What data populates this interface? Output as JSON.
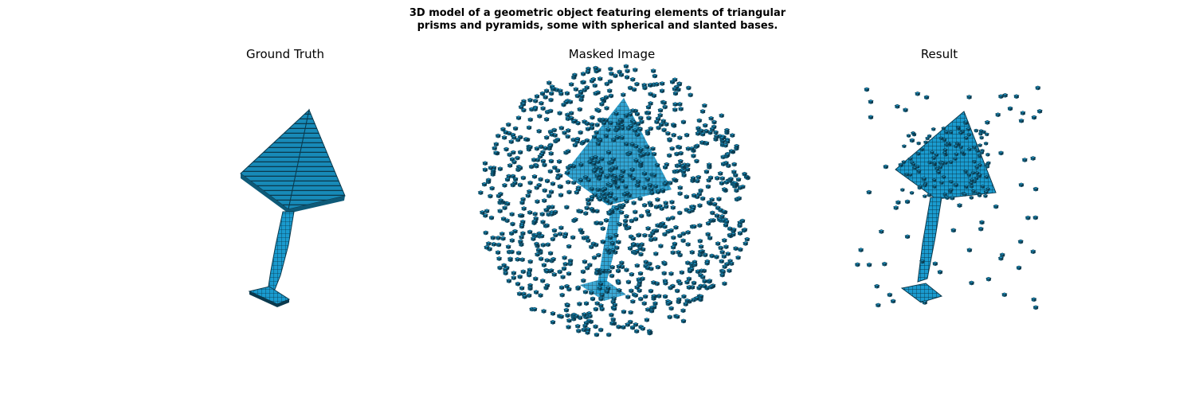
{
  "figure": {
    "suptitle_line1": "3D model of a geometric object featuring elements of triangular",
    "suptitle_line2": "prisms and pyramids, some with spherical and slanted bases.",
    "panels": [
      {
        "title": "Ground Truth"
      },
      {
        "title": "Masked Image"
      },
      {
        "title": "Result"
      }
    ]
  },
  "colors": {
    "voxel_face": "#1a9bcf",
    "voxel_dark": "#0e5a78",
    "voxel_edge": "#0b3a4e",
    "background": "#ffffff"
  }
}
